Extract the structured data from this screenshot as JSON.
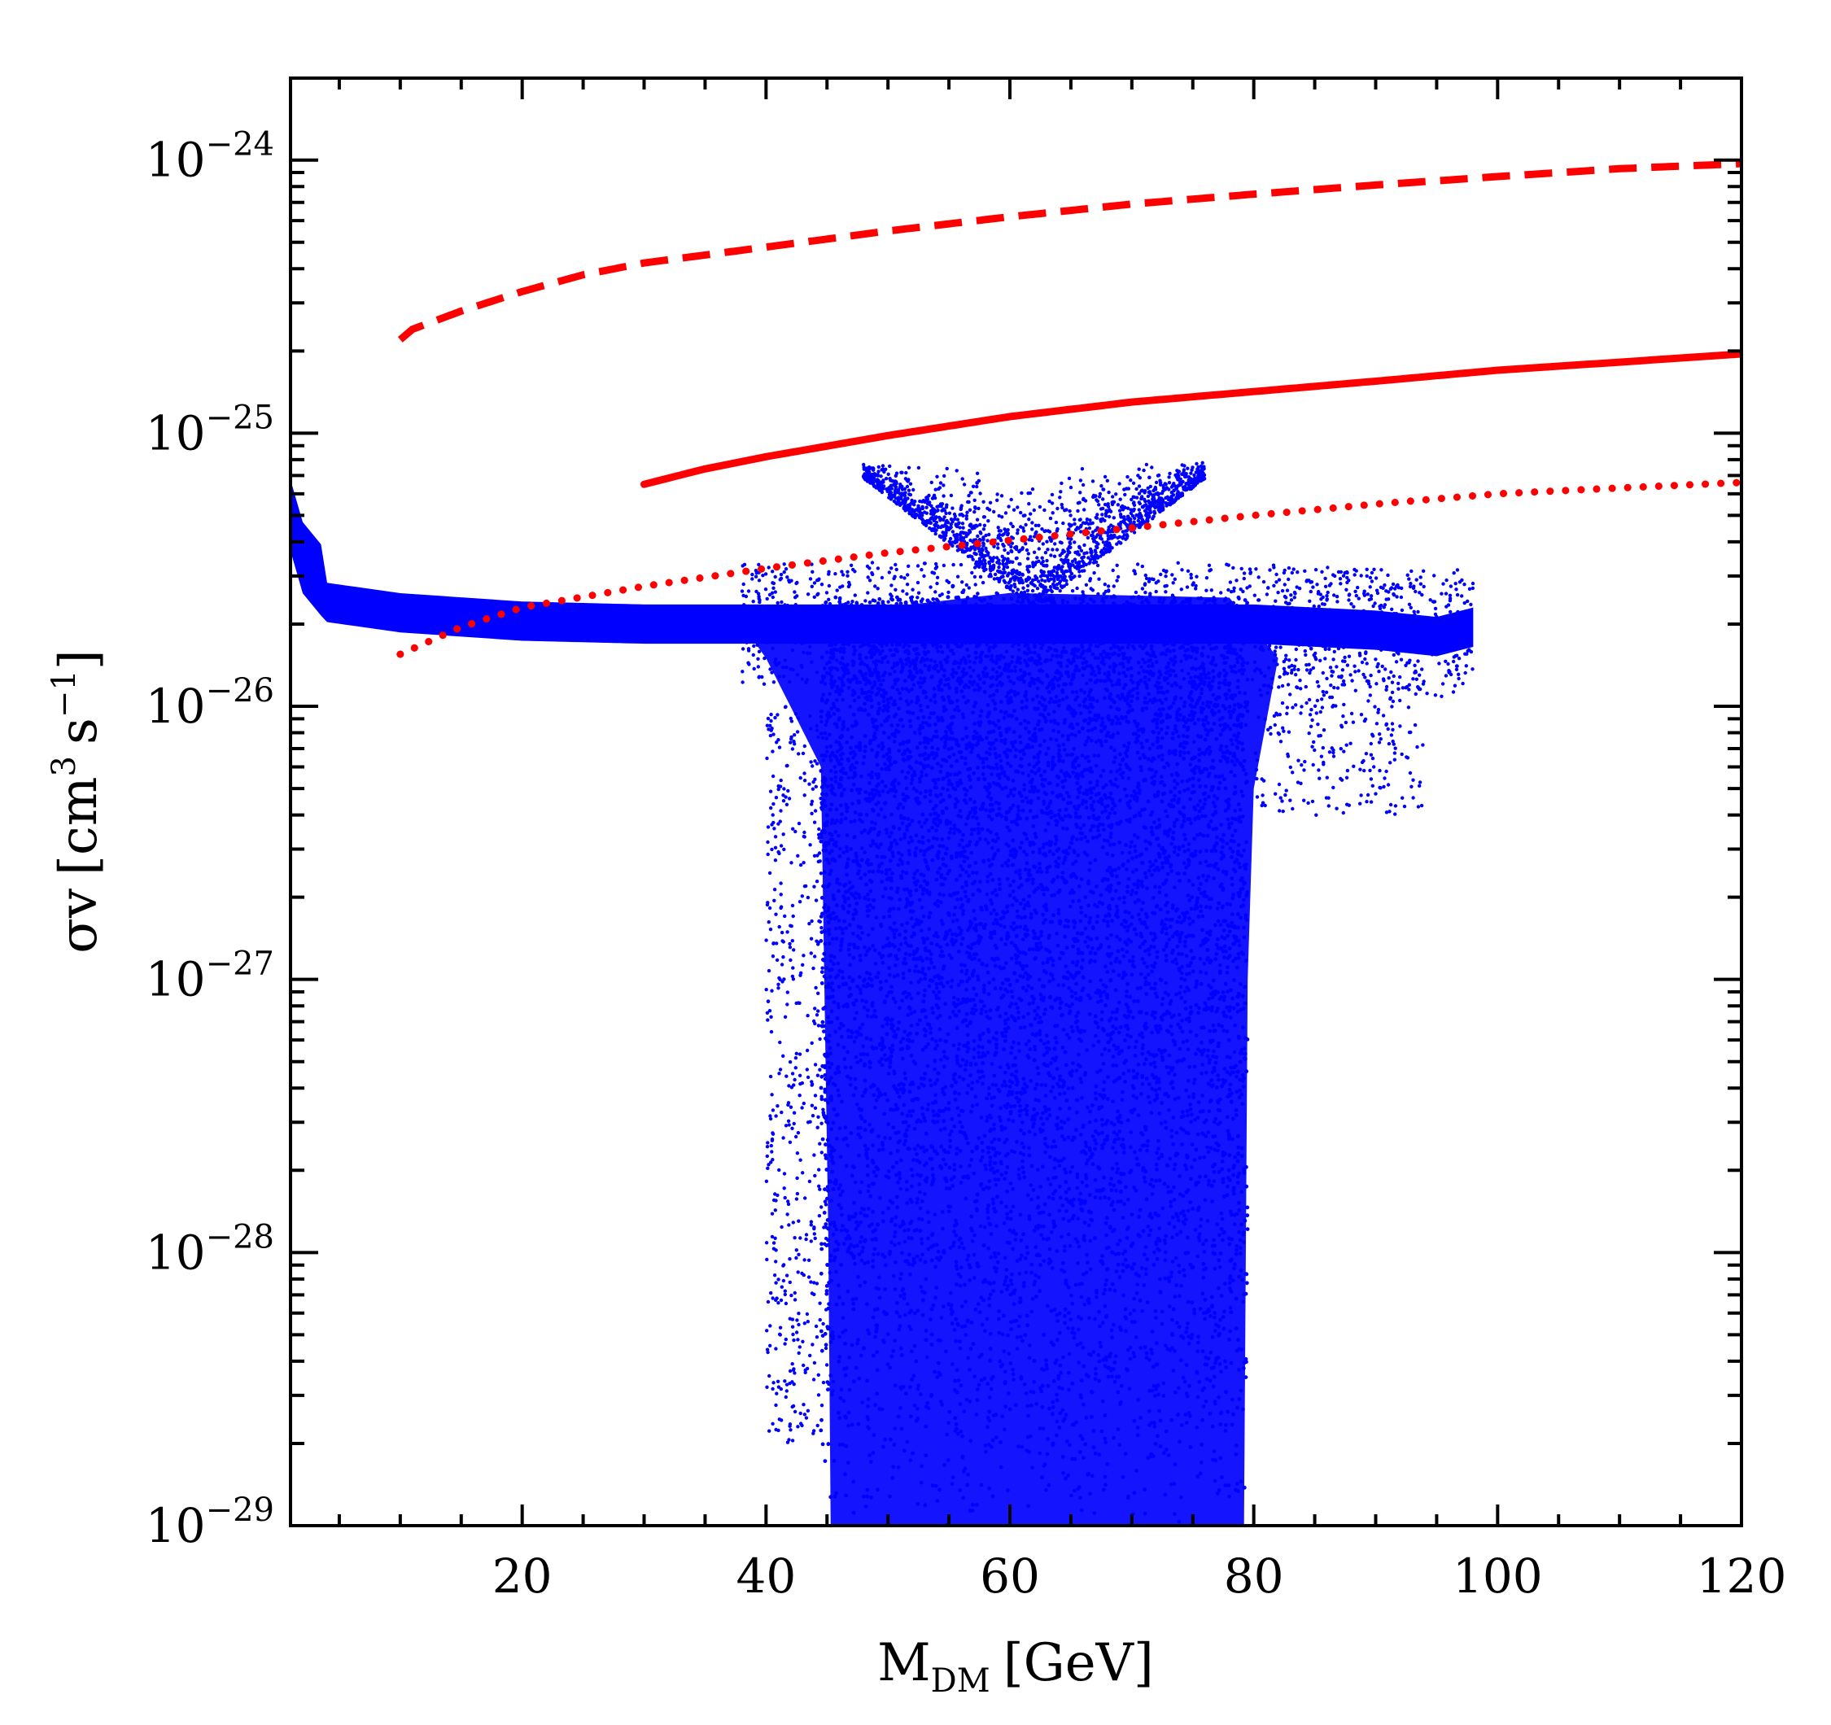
{
  "chart_data": {
    "type": "scatter",
    "title": "",
    "xlabel": {
      "main": "M",
      "sub": "DM",
      "unit": "[GeV]"
    },
    "ylabel": {
      "sym": "σv",
      "open": "[cm",
      "exp1": "3",
      "mid": "s",
      "exp2": "−1",
      "close": "]"
    },
    "xlim": [
      1,
      120
    ],
    "ylim_log10": [
      -29,
      -23.7
    ],
    "grid": false,
    "x_ticks": [
      20,
      40,
      60,
      80,
      100,
      120
    ],
    "x_tick_labels": [
      "20",
      "40",
      "60",
      "80",
      "100",
      "120"
    ],
    "y_ticks_log10": [
      -29,
      -28,
      -27,
      -26,
      -25,
      -24
    ],
    "y_tick_labels": [
      {
        "base": "10",
        "exp": "−29"
      },
      {
        "base": "10",
        "exp": "−28"
      },
      {
        "base": "10",
        "exp": "−27"
      },
      {
        "base": "10",
        "exp": "−26"
      },
      {
        "base": "10",
        "exp": "−25"
      },
      {
        "base": "10",
        "exp": "−24"
      }
    ],
    "colors": {
      "scatter": "#0000ff",
      "limits": "#ff0000"
    },
    "series": [
      {
        "name": "dashed limit",
        "style": "dashed",
        "x": [
          10,
          11,
          15,
          20,
          25,
          30,
          40,
          50,
          60,
          70,
          80,
          90,
          100,
          110,
          120
        ],
        "y": [
          2.2e-25,
          2.4e-25,
          2.8e-25,
          3.3e-25,
          3.8e-25,
          4.2e-25,
          4.8e-25,
          5.5e-25,
          6.2e-25,
          6.9e-25,
          7.5e-25,
          8.1e-25,
          8.7e-25,
          9.3e-25,
          9.7e-25
        ]
      },
      {
        "name": "solid limit",
        "style": "solid",
        "x": [
          30,
          35,
          40,
          50,
          60,
          70,
          80,
          90,
          100,
          110,
          120
        ],
        "y": [
          6.5e-26,
          7.4e-26,
          8.2e-26,
          9.8e-26,
          1.15e-25,
          1.3e-25,
          1.42e-25,
          1.55e-25,
          1.7e-25,
          1.82e-25,
          1.95e-25
        ]
      },
      {
        "name": "dotted limit",
        "style": "dotted",
        "x": [
          10,
          15,
          20,
          30,
          40,
          50,
          60,
          70,
          80,
          90,
          100,
          110,
          120
        ],
        "y": [
          1.55e-26,
          1.95e-26,
          2.3e-26,
          2.75e-26,
          3.2e-26,
          3.65e-26,
          4.05e-26,
          4.5e-26,
          5e-26,
          5.5e-26,
          6e-26,
          6.3e-26,
          6.6e-26
        ]
      },
      {
        "name": "scan points",
        "style": "points",
        "band": {
          "x": [
            1,
            2,
            3.5,
            4,
            10,
            20,
            30,
            40,
            45,
            50,
            60,
            70,
            80,
            90,
            95,
            99
          ],
          "y": [
            5e-26,
            3.5e-26,
            2.9e-26,
            2.4e-26,
            2.2e-26,
            2.05e-26,
            2e-26,
            2e-26,
            2e-26,
            2e-26,
            2e-26,
            2e-26,
            2e-26,
            1.9e-26,
            1.8e-26,
            2e-26
          ]
        },
        "resonance_x_range": [
          44.5,
          79.5
        ],
        "resonance_y_range": [
          1e-29,
          3e-26
        ],
        "upper_cloud": {
          "x_range": [
            48,
            76
          ],
          "y_max": 8e-26
        }
      }
    ]
  }
}
